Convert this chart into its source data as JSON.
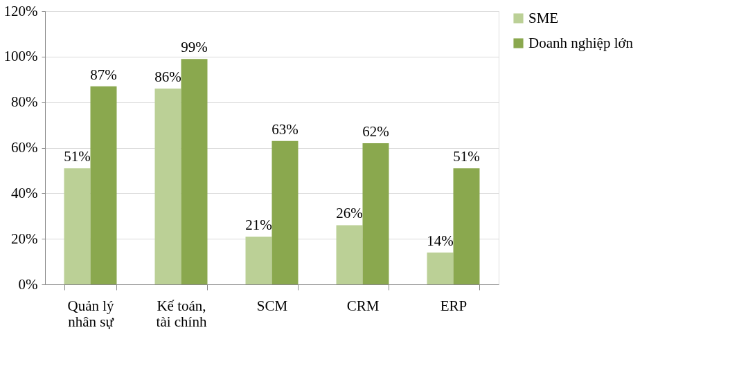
{
  "chart_data": {
    "type": "bar",
    "categories": [
      "Quản lý nhân sự",
      "Kế toán, tài chính",
      "SCM",
      "CRM",
      "ERP"
    ],
    "series": [
      {
        "name": "SME",
        "color": "#bbd096",
        "values": [
          51,
          86,
          21,
          26,
          14
        ],
        "value_labels": [
          "51%",
          "86%",
          "21%",
          "26%",
          "14%"
        ]
      },
      {
        "name": "Doanh nghiệp lớn",
        "color": "#8aa84e",
        "values": [
          87,
          99,
          63,
          62,
          51
        ],
        "value_labels": [
          "87%",
          "99%",
          "63%",
          "62%",
          "51%"
        ]
      }
    ],
    "ylim": [
      0,
      120
    ],
    "yticks": [
      {
        "value": 0,
        "label": "0%"
      },
      {
        "value": 20,
        "label": "20%"
      },
      {
        "value": 40,
        "label": "40%"
      },
      {
        "value": 60,
        "label": "60%"
      },
      {
        "value": 80,
        "label": "80%"
      },
      {
        "value": 100,
        "label": "100%"
      },
      {
        "value": 120,
        "label": "120%"
      }
    ],
    "grid": "y",
    "legend": "right"
  }
}
